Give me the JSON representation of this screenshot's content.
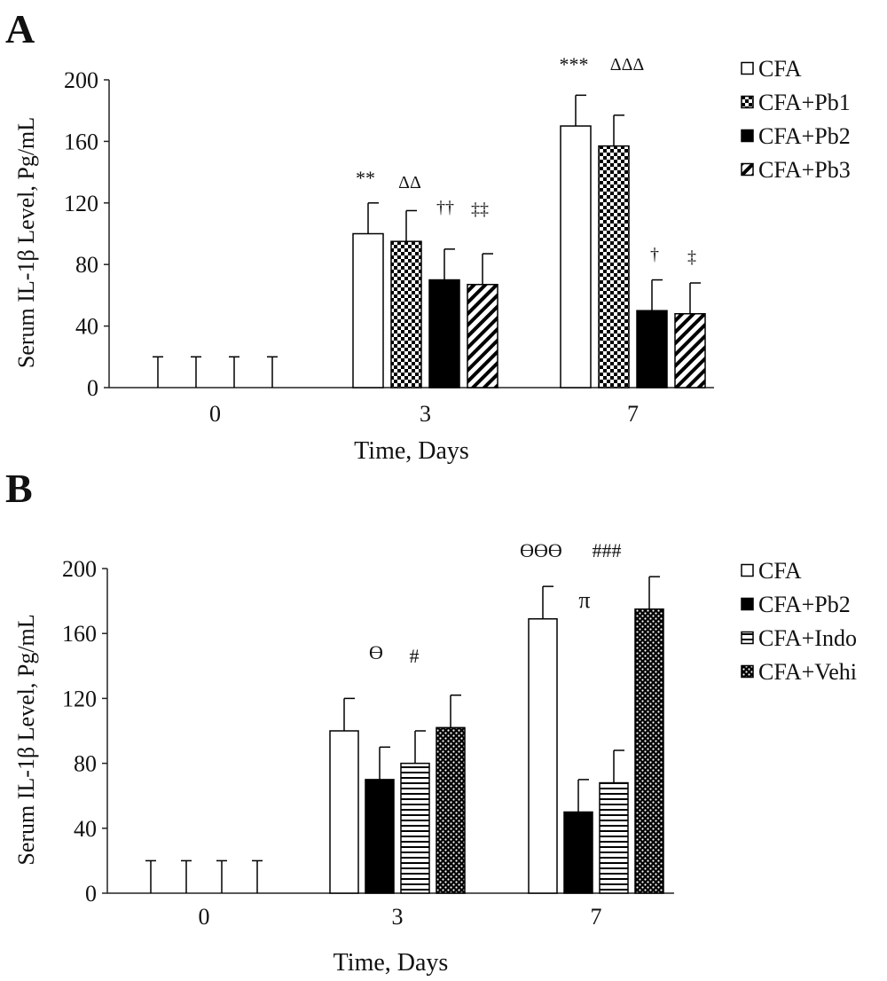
{
  "panels": [
    {
      "letter": "A",
      "legend": [
        "CFA",
        "CFA+Pb1",
        "CFA+Pb2",
        "CFA+Pb3"
      ],
      "annotations": [
        "**",
        "ΔΔ",
        "††",
        "‡‡",
        "***",
        "ΔΔΔ",
        "†",
        "‡"
      ]
    },
    {
      "letter": "B",
      "legend": [
        "CFA",
        "CFA+Pb2",
        "CFA+Indo",
        "CFA+Vehi"
      ],
      "annotations": [
        "ϴ",
        "#",
        "ϴϴϴ",
        "###",
        "π"
      ]
    }
  ],
  "chart_data": [
    {
      "type": "bar",
      "panel": "A",
      "xlabel": "Time, Days",
      "ylabel": "Serum IL-1β Level, Pg/mL",
      "categories": [
        "0",
        "3",
        "7"
      ],
      "ylim": [
        0,
        200
      ],
      "yticks": [
        "0",
        "40",
        "80",
        "120",
        "160",
        "200"
      ],
      "grid": false,
      "legend_position": "right",
      "series": [
        {
          "name": "CFA",
          "pattern": "white",
          "values": [
            0,
            100,
            170
          ],
          "errors": [
            20,
            20,
            20
          ]
        },
        {
          "name": "CFA+Pb1",
          "pattern": "checker",
          "values": [
            0,
            95,
            157
          ],
          "errors": [
            20,
            20,
            20
          ]
        },
        {
          "name": "CFA+Pb2",
          "pattern": "black",
          "values": [
            0,
            70,
            50
          ],
          "errors": [
            20,
            20,
            20
          ]
        },
        {
          "name": "CFA+Pb3",
          "pattern": "diagonal",
          "values": [
            0,
            67,
            48
          ],
          "errors": [
            20,
            20,
            20
          ]
        }
      ]
    },
    {
      "type": "bar",
      "panel": "B",
      "xlabel": "Time, Days",
      "ylabel": "Serum IL-1β Level, Pg/mL",
      "categories": [
        "0",
        "3",
        "7"
      ],
      "ylim": [
        0,
        200
      ],
      "yticks": [
        "0",
        "40",
        "80",
        "120",
        "160",
        "200"
      ],
      "grid": false,
      "legend_position": "right",
      "series": [
        {
          "name": "CFA",
          "pattern": "white",
          "values": [
            0,
            100,
            169
          ],
          "errors": [
            20,
            20,
            20
          ]
        },
        {
          "name": "CFA+Pb2",
          "pattern": "black",
          "values": [
            0,
            70,
            50
          ],
          "errors": [
            20,
            20,
            20
          ]
        },
        {
          "name": "CFA+Indo",
          "pattern": "horizontal",
          "values": [
            0,
            80,
            68
          ],
          "errors": [
            20,
            20,
            20
          ]
        },
        {
          "name": "CFA+Vehi",
          "pattern": "dots",
          "values": [
            0,
            102,
            175
          ],
          "errors": [
            20,
            20,
            20
          ]
        }
      ]
    }
  ]
}
